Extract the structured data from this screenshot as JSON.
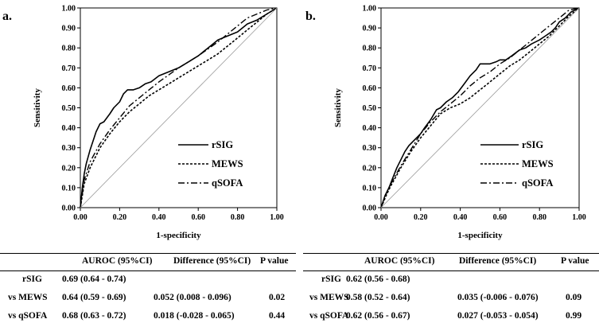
{
  "chart_data": [
    {
      "type": "line",
      "panel_label": "a.",
      "xlabel": "1-specificity",
      "ylabel": "Sensitivity",
      "xlim": [
        0,
        1
      ],
      "ylim": [
        0,
        1
      ],
      "xticks": [
        "0.00",
        "0.20",
        "0.40",
        "0.60",
        "0.80",
        "1.00"
      ],
      "yticks": [
        "0.00",
        "0.10",
        "0.20",
        "0.30",
        "0.40",
        "0.50",
        "0.60",
        "0.70",
        "0.80",
        "0.90",
        "1.00"
      ],
      "legend": [
        "rSIG",
        "MEWS",
        "qSOFA"
      ],
      "series": [
        {
          "name": "rSIG",
          "style": "solid",
          "x": [
            0,
            0.01,
            0.02,
            0.03,
            0.05,
            0.07,
            0.08,
            0.1,
            0.12,
            0.15,
            0.17,
            0.2,
            0.22,
            0.24,
            0.27,
            0.3,
            0.33,
            0.36,
            0.4,
            0.45,
            0.5,
            0.55,
            0.6,
            0.65,
            0.7,
            0.75,
            0.8,
            0.85,
            0.9,
            0.95,
            1.0
          ],
          "y": [
            0,
            0.1,
            0.17,
            0.22,
            0.29,
            0.35,
            0.38,
            0.42,
            0.43,
            0.47,
            0.5,
            0.53,
            0.57,
            0.59,
            0.59,
            0.6,
            0.62,
            0.63,
            0.66,
            0.68,
            0.7,
            0.73,
            0.76,
            0.8,
            0.84,
            0.86,
            0.88,
            0.92,
            0.94,
            0.97,
            1.0
          ]
        },
        {
          "name": "MEWS",
          "style": "dashed",
          "x": [
            0,
            0.02,
            0.05,
            0.1,
            0.15,
            0.2,
            0.25,
            0.3,
            0.35,
            0.4,
            0.45,
            0.5,
            0.55,
            0.6,
            0.65,
            0.7,
            0.75,
            0.8,
            0.85,
            0.9,
            0.95,
            1.0
          ],
          "y": [
            0,
            0.12,
            0.2,
            0.3,
            0.37,
            0.43,
            0.48,
            0.52,
            0.56,
            0.59,
            0.62,
            0.65,
            0.68,
            0.71,
            0.74,
            0.77,
            0.81,
            0.85,
            0.89,
            0.93,
            0.97,
            1.0
          ]
        },
        {
          "name": "qSOFA",
          "style": "dashdot",
          "x": [
            0,
            0.02,
            0.05,
            0.1,
            0.15,
            0.2,
            0.25,
            0.3,
            0.4,
            0.5,
            0.6,
            0.7,
            0.75,
            0.8,
            0.85,
            0.9,
            0.95,
            1.0
          ],
          "y": [
            0,
            0.14,
            0.23,
            0.32,
            0.39,
            0.45,
            0.51,
            0.55,
            0.63,
            0.7,
            0.76,
            0.83,
            0.87,
            0.91,
            0.95,
            0.97,
            0.99,
            1.0
          ]
        },
        {
          "name": "reference",
          "style": "thin",
          "x": [
            0,
            1
          ],
          "y": [
            0,
            1
          ]
        }
      ]
    },
    {
      "type": "line",
      "panel_label": "b.",
      "xlabel": "1-specificity",
      "ylabel": "Sensitivity",
      "xlim": [
        0,
        1
      ],
      "ylim": [
        0,
        1
      ],
      "xticks": [
        "0.00",
        "0.20",
        "0.40",
        "0.60",
        "0.80",
        "1.00"
      ],
      "yticks": [
        "0.00",
        "0.10",
        "0.20",
        "0.30",
        "0.40",
        "0.50",
        "0.60",
        "0.70",
        "0.80",
        "0.90",
        "1.00"
      ],
      "legend": [
        "rSIG",
        "MEWS",
        "qSOFA"
      ],
      "series": [
        {
          "name": "rSIG",
          "style": "solid",
          "x": [
            0,
            0.02,
            0.04,
            0.06,
            0.08,
            0.1,
            0.12,
            0.14,
            0.16,
            0.18,
            0.2,
            0.22,
            0.25,
            0.28,
            0.3,
            0.33,
            0.36,
            0.39,
            0.42,
            0.45,
            0.48,
            0.5,
            0.52,
            0.55,
            0.58,
            0.6,
            0.63,
            0.66,
            0.7,
            0.73,
            0.76,
            0.8,
            0.83,
            0.86,
            0.88,
            0.9,
            0.93,
            0.96,
            1.0
          ],
          "y": [
            0,
            0.06,
            0.1,
            0.15,
            0.2,
            0.24,
            0.28,
            0.31,
            0.33,
            0.35,
            0.37,
            0.4,
            0.44,
            0.49,
            0.5,
            0.53,
            0.55,
            0.58,
            0.62,
            0.66,
            0.69,
            0.72,
            0.72,
            0.72,
            0.73,
            0.74,
            0.74,
            0.76,
            0.79,
            0.8,
            0.82,
            0.84,
            0.86,
            0.88,
            0.9,
            0.93,
            0.95,
            0.98,
            1.0
          ]
        },
        {
          "name": "MEWS",
          "style": "dashed",
          "x": [
            0,
            0.03,
            0.05,
            0.1,
            0.15,
            0.2,
            0.25,
            0.3,
            0.35,
            0.4,
            0.45,
            0.5,
            0.55,
            0.6,
            0.65,
            0.7,
            0.75,
            0.8,
            0.85,
            0.9,
            0.95,
            1.0
          ],
          "y": [
            0,
            0.07,
            0.11,
            0.2,
            0.28,
            0.35,
            0.41,
            0.47,
            0.5,
            0.52,
            0.55,
            0.59,
            0.63,
            0.67,
            0.71,
            0.74,
            0.78,
            0.82,
            0.86,
            0.91,
            0.96,
            1.0
          ]
        },
        {
          "name": "qSOFA",
          "style": "dashdot",
          "x": [
            0,
            0.03,
            0.05,
            0.1,
            0.15,
            0.2,
            0.25,
            0.3,
            0.35,
            0.4,
            0.45,
            0.5,
            0.55,
            0.6,
            0.65,
            0.7,
            0.75,
            0.8,
            0.85,
            0.9,
            0.95,
            1.0
          ],
          "y": [
            0,
            0.08,
            0.12,
            0.21,
            0.29,
            0.37,
            0.43,
            0.48,
            0.52,
            0.56,
            0.61,
            0.65,
            0.68,
            0.72,
            0.75,
            0.79,
            0.83,
            0.87,
            0.91,
            0.95,
            0.99,
            1.0
          ]
        },
        {
          "name": "reference",
          "style": "thin",
          "x": [
            0,
            1
          ],
          "y": [
            0,
            1
          ]
        }
      ]
    }
  ],
  "tables": {
    "a": {
      "headers": [
        "",
        "AUROC (95%CI)",
        "Difference (95%CI)",
        "P value"
      ],
      "rows": [
        [
          "rSIG",
          "0.69 (0.64 - 0.74)",
          "",
          ""
        ],
        [
          "vs MEWS",
          "0.64 (0.59 - 0.69)",
          "0.052 (0.008 - 0.096)",
          "0.02"
        ],
        [
          "vs qSOFA",
          "0.68 (0.63 - 0.72)",
          "0.018 (-0.028 - 0.065)",
          "0.44"
        ]
      ]
    },
    "b": {
      "headers": [
        "",
        "AUROC (95%CI)",
        "Difference (95%CI)",
        "P value"
      ],
      "rows": [
        [
          "rSIG",
          "0.62 (0.56 - 0.68)",
          "",
          ""
        ],
        [
          "vs MEWS",
          "0.58 (0.52 - 0.64)",
          "0.035 (-0.006 - 0.076)",
          "0.09"
        ],
        [
          "vs qSOFA",
          "0.62 (0.56 - 0.67)",
          "0.027 (-0.053 - 0.054)",
          "0.99"
        ]
      ]
    }
  }
}
